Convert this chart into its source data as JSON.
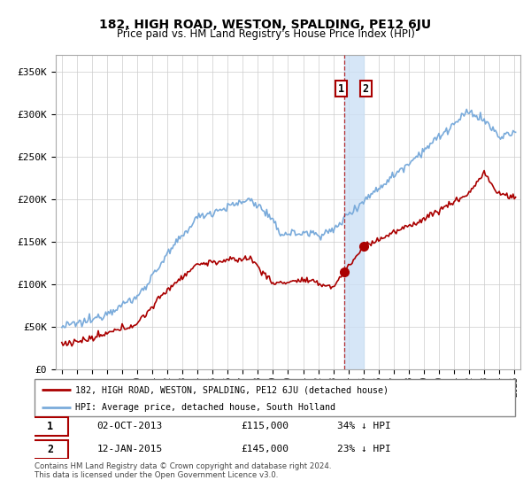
{
  "title": "182, HIGH ROAD, WESTON, SPALDING, PE12 6JU",
  "subtitle": "Price paid vs. HM Land Registry's House Price Index (HPI)",
  "legend_line1": "182, HIGH ROAD, WESTON, SPALDING, PE12 6JU (detached house)",
  "legend_line2": "HPI: Average price, detached house, South Holland",
  "transaction1_date": "02-OCT-2013",
  "transaction1_price": "£115,000",
  "transaction1_hpi": "34% ↓ HPI",
  "transaction1_x": 2013.75,
  "transaction1_y": 115000,
  "transaction2_date": "12-JAN-2015",
  "transaction2_price": "£145,000",
  "transaction2_hpi": "23% ↓ HPI",
  "transaction2_x": 2015.04,
  "transaction2_y": 145000,
  "footer": "Contains HM Land Registry data © Crown copyright and database right 2024.\nThis data is licensed under the Open Government Licence v3.0.",
  "red_color": "#aa0000",
  "blue_color": "#7aabdb",
  "shade_color": "#cce0f5",
  "ylim": [
    0,
    370000
  ],
  "yticks": [
    0,
    50000,
    100000,
    150000,
    200000,
    250000,
    300000,
    350000
  ],
  "ytick_labels": [
    "£0",
    "£50K",
    "£100K",
    "£150K",
    "£200K",
    "£250K",
    "£300K",
    "£350K"
  ],
  "xlim_left": 1994.6,
  "xlim_right": 2025.4
}
